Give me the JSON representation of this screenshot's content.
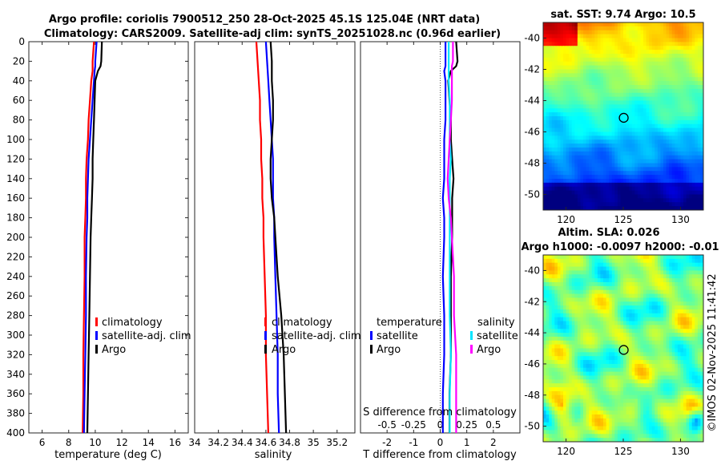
{
  "title_line1": "Argo profile: coriolis 7900512_250 28-Oct-2025 45.1S 125.04E (NRT data)",
  "title_line2": "Climatology: CARS2009. Satellite-adj clim: synTS_20251028.nc (0.96d earlier)",
  "sst_title": "sat. SST: 9.74 Argo: 10.5",
  "sla_title1": "Altim. SLA: 0.026",
  "sla_title2": "Argo h1000: -0.0097 h2000: -0.01",
  "credit": "©IMOS 02-Nov-2025 11:41:42",
  "colors": {
    "climatology": "#ff0000",
    "satellite": "#0000ff",
    "argo": "#000000",
    "sal_satellite": "#00e5ff",
    "sal_argo": "#ff00ff"
  },
  "chart_data": [
    {
      "id": "temperature",
      "type": "line",
      "xlabel": "temperature (deg C)",
      "xlim": [
        5,
        17
      ],
      "xticks": [
        "6",
        "8",
        "10",
        "12",
        "14",
        "16"
      ],
      "xtick_values": [
        6,
        8,
        10,
        12,
        14,
        16
      ],
      "ylim": [
        0,
        400
      ],
      "yticks": [
        "0",
        "20",
        "40",
        "60",
        "80",
        "100",
        "120",
        "140",
        "160",
        "180",
        "200",
        "220",
        "240",
        "260",
        "280",
        "300",
        "320",
        "340",
        "360",
        "380",
        "400"
      ],
      "depth": [
        0,
        20,
        25,
        30,
        40,
        60,
        80,
        100,
        120,
        140,
        160,
        180,
        200,
        240,
        280,
        320,
        360,
        400
      ],
      "legend": [
        "climatology",
        "satellite-adj. clim",
        "Argo"
      ],
      "series": [
        {
          "name": "climatology",
          "color": "#ff0000",
          "values": [
            9.9,
            9.8,
            9.8,
            9.8,
            9.7,
            9.6,
            9.5,
            9.45,
            9.35,
            9.3,
            9.3,
            9.25,
            9.2,
            9.2,
            9.15,
            9.1,
            9.1,
            9.05
          ]
        },
        {
          "name": "satellite-adj. clim",
          "color": "#0000ff",
          "values": [
            10.1,
            10.0,
            10.0,
            9.95,
            9.9,
            9.8,
            9.7,
            9.6,
            9.5,
            9.45,
            9.4,
            9.4,
            9.35,
            9.3,
            9.3,
            9.25,
            9.2,
            9.15
          ]
        },
        {
          "name": "Argo",
          "color": "#000000",
          "values": [
            10.5,
            10.45,
            10.4,
            10.2,
            10.0,
            9.95,
            9.9,
            9.85,
            9.8,
            9.8,
            9.75,
            9.7,
            9.65,
            9.6,
            9.55,
            9.5,
            9.45,
            9.4
          ]
        }
      ]
    },
    {
      "id": "salinity",
      "type": "line",
      "xlabel": "salinity",
      "xlim": [
        34,
        35.35
      ],
      "xticks": [
        "34",
        "34.2",
        "34.4",
        "34.6",
        "34.8",
        "35",
        "35.2"
      ],
      "xtick_values": [
        34,
        34.2,
        34.4,
        34.6,
        34.8,
        35,
        35.2
      ],
      "ylim": [
        0,
        400
      ],
      "depth": [
        0,
        20,
        40,
        60,
        80,
        100,
        120,
        140,
        160,
        180,
        200,
        240,
        280,
        320,
        360,
        400
      ],
      "legend": [
        "climatology",
        "satellite-adj. clim",
        "Argo"
      ],
      "series": [
        {
          "name": "climatology",
          "color": "#ff0000",
          "values": [
            34.52,
            34.53,
            34.54,
            34.55,
            34.55,
            34.56,
            34.56,
            34.57,
            34.57,
            34.58,
            34.58,
            34.59,
            34.6,
            34.6,
            34.61,
            34.62
          ]
        },
        {
          "name": "satellite-adj. clim",
          "color": "#0000ff",
          "values": [
            34.6,
            34.61,
            34.62,
            34.63,
            34.64,
            34.65,
            34.66,
            34.66,
            34.66,
            34.67,
            34.67,
            34.68,
            34.69,
            34.7,
            34.7,
            34.71
          ]
        },
        {
          "name": "Argo",
          "color": "#000000",
          "values": [
            34.64,
            34.65,
            34.65,
            34.66,
            34.66,
            34.65,
            34.64,
            34.64,
            34.65,
            34.67,
            34.68,
            34.7,
            34.73,
            34.75,
            34.76,
            34.77
          ]
        }
      ]
    },
    {
      "id": "difference",
      "type": "line",
      "xlabel": "T difference from climatology",
      "xlabel_top": "S difference from climatology",
      "xlim": [
        -3,
        3
      ],
      "xticks": [
        "-2",
        "-1",
        "0",
        "1",
        "2"
      ],
      "xtick_values": [
        -2,
        -1,
        0,
        1,
        2
      ],
      "sticks": [
        "-0.5",
        "-0.25",
        "0",
        "0.25",
        "0.5"
      ],
      "ylim": [
        0,
        400
      ],
      "depth": [
        0,
        20,
        25,
        30,
        40,
        60,
        80,
        100,
        120,
        140,
        160,
        180,
        200,
        240,
        280,
        320,
        360,
        400
      ],
      "legend_temperature": [
        "temperature",
        "satellite",
        "Argo"
      ],
      "legend_salinity": [
        "salinity",
        "satellite",
        "Argo"
      ],
      "series": [
        {
          "name": "T satellite",
          "color": "#0000ff",
          "values": [
            0.2,
            0.2,
            0.2,
            0.15,
            0.2,
            0.2,
            0.2,
            0.15,
            0.15,
            0.15,
            0.1,
            0.15,
            0.15,
            0.1,
            0.15,
            0.15,
            0.1,
            0.1
          ]
        },
        {
          "name": "T Argo",
          "color": "#000000",
          "values": [
            0.6,
            0.65,
            0.6,
            0.4,
            0.3,
            0.35,
            0.4,
            0.4,
            0.45,
            0.5,
            0.45,
            0.45,
            0.45,
            0.4,
            0.4,
            0.4,
            0.35,
            0.35
          ]
        },
        {
          "name": "S satellite",
          "color": "#00e5ff",
          "values": [
            0.08,
            0.08,
            0.08,
            0.08,
            0.08,
            0.09,
            0.09,
            0.09,
            0.1,
            0.09,
            0.09,
            0.09,
            0.09,
            0.09,
            0.09,
            0.1,
            0.09,
            0.09
          ]
        },
        {
          "name": "S Argo",
          "color": "#ff00ff",
          "values": [
            0.12,
            0.12,
            0.11,
            0.11,
            0.11,
            0.11,
            0.1,
            0.09,
            0.08,
            0.07,
            0.08,
            0.1,
            0.11,
            0.13,
            0.13,
            0.15,
            0.15,
            0.15
          ]
        }
      ]
    },
    {
      "id": "sst_map",
      "type": "heatmap",
      "title": "sat. SST: 9.74 Argo: 10.5",
      "xlim": [
        118,
        132
      ],
      "ylim": [
        -51,
        -39
      ],
      "xticks": [
        "120",
        "125",
        "130"
      ],
      "xtick_values": [
        120,
        125,
        130
      ],
      "yticks": [
        "-40",
        "-42",
        "-44",
        "-46",
        "-48",
        "-50"
      ],
      "ytick_values": [
        -40,
        -42,
        -44,
        -46,
        -48,
        -50
      ],
      "marker": [
        125.04,
        -45.1
      ]
    },
    {
      "id": "sla_map",
      "type": "heatmap",
      "title": "Altim. SLA: 0.026",
      "xlim": [
        118,
        132
      ],
      "ylim": [
        -51,
        -39
      ],
      "xticks": [
        "120",
        "125",
        "130"
      ],
      "xtick_values": [
        120,
        125,
        130
      ],
      "yticks": [
        "-40",
        "-42",
        "-44",
        "-46",
        "-48",
        "-50"
      ],
      "ytick_values": [
        -40,
        -42,
        -44,
        -46,
        -48,
        -50
      ],
      "marker": [
        125.04,
        -45.1
      ]
    }
  ]
}
